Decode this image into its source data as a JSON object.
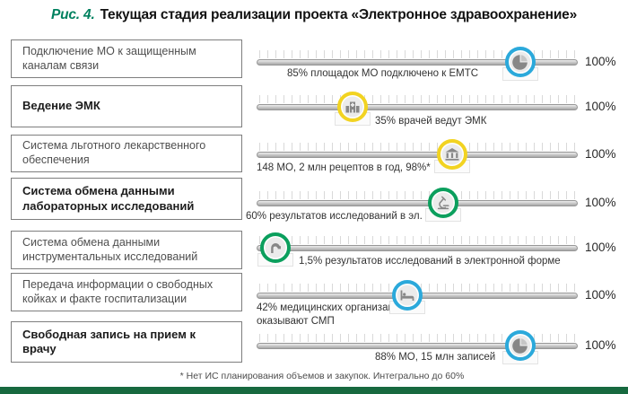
{
  "title": {
    "prefix": "Рис. 4.",
    "text": "Текущая стадия реализации проекта «Электронное здравоохранение»"
  },
  "scale_max": "100%",
  "rows": [
    {
      "label": "Подключение МО к защищенным каналам связи",
      "emphasis": false,
      "caption": "85% площадок МО подключено к ЕМТС",
      "value_pct": 85,
      "marker_pct": 82,
      "ring_color": "#2BA9DB",
      "icon": "pie-chart-icon"
    },
    {
      "label": "Ведение ЭМК",
      "emphasis": true,
      "caption": "35% врачей ведут ЭМК",
      "value_pct": 35,
      "marker_pct": 30,
      "ring_color": "#F2D321",
      "icon": "hospital-icon"
    },
    {
      "label": "Система льготного лекарственного обеспечения",
      "emphasis": false,
      "caption": "148 МО, 2 млн рецептов в год, 98%*",
      "value_pct": 60,
      "marker_pct": 61,
      "ring_color": "#F2D321",
      "icon": "government-building-icon"
    },
    {
      "label": "Система обмена данными лабораторных исследований",
      "emphasis": true,
      "caption": "60% результатов исследований в эл. форме",
      "value_pct": 60,
      "marker_pct": 58,
      "ring_color": "#0B9F5D",
      "icon": "microscope-icon"
    },
    {
      "label": "Система обмена данными инструментальных исследований",
      "emphasis": false,
      "caption": "1,5% результатов исследований в электронной форме",
      "value_pct": 1.5,
      "marker_pct": 6,
      "ring_color": "#0B9F5D",
      "icon": "instrument-icon"
    },
    {
      "label": "Передача информации о свободных койках и факте госпитализации",
      "emphasis": false,
      "caption": "42% медицинских организаций\nоказывают СМП",
      "value_pct": 42,
      "marker_pct": 47,
      "ring_color": "#2BA9DB",
      "icon": "hospital-bed-icon"
    },
    {
      "label": "Свободная запись на прием к врачу",
      "emphasis": true,
      "caption": "88% МО, 15 млн записей",
      "value_pct": 88,
      "marker_pct": 82,
      "ring_color": "#2BA9DB",
      "icon": "pie-chart-icon"
    }
  ],
  "footnote": "* Нет ИС планирования объемов и закупок. Интегрально до 60%",
  "colors": {
    "title_accent": "#00815F",
    "ring_blue": "#2BA9DB",
    "ring_yellow": "#F2D321",
    "ring_green": "#0B9F5D",
    "bottom_bar": "#17693F",
    "track_gray": "#B5B5B5"
  },
  "chart_data": {
    "type": "bar",
    "title": "Рис. 4. Текущая стадия реализации проекта «Электронное здравоохранение»",
    "categories": [
      "Подключение МО к защищенным каналам связи",
      "Ведение ЭМК",
      "Система льготного лекарственного обеспечения",
      "Система обмена данными лабораторных исследований",
      "Система обмена данными инструментальных исследований",
      "Передача информации о свободных койках и факте госпитализации",
      "Свободная запись на прием к врачу"
    ],
    "values": [
      85,
      35,
      60,
      60,
      1.5,
      42,
      88
    ],
    "annotations": [
      "85% площадок МО подключено к ЕМТС",
      "35% врачей ведут ЭМК",
      "148 МО, 2 млн рецептов в год, 98%*",
      "60% результатов исследований в эл. форме",
      "1,5% результатов исследований в электронной форме",
      "42% медицинских организаций оказывают СМП",
      "88% МО, 15 млн записей"
    ],
    "xlabel": "",
    "ylabel": "",
    "xlim": [
      0,
      100
    ],
    "axis_max_label": "100%",
    "legend": "none",
    "orientation": "horizontal"
  }
}
